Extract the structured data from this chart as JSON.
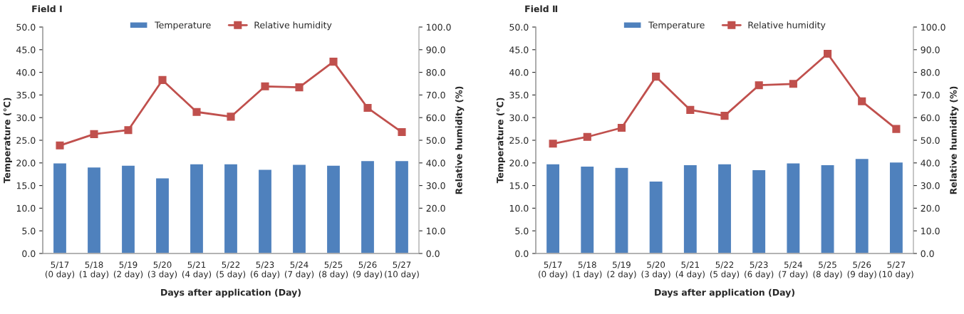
{
  "chart_data": [
    {
      "type": "bar",
      "title": "Field Ⅰ",
      "xlabel": "Days after application (Day)",
      "ylabel": "Temperature (℃)",
      "y2label": "Relative humidity (%)",
      "categories": [
        "5/17\n(0 day)",
        "5/18\n(1 day)",
        "5/19\n(2 day)",
        "5/20\n(3 day)",
        "5/21\n(4 day)",
        "5/22\n(5 day)",
        "5/23\n(6 day)",
        "5/24\n(7 day)",
        "5/25\n(8 day)",
        "5/26\n(9 day)",
        "5/27\n(10 day)"
      ],
      "series": [
        {
          "name": "Temperature",
          "color": "#4f81bd",
          "values": [
            20.0,
            19.1,
            19.5,
            16.7,
            19.8,
            19.8,
            18.6,
            19.7,
            19.5,
            20.5,
            20.5
          ]
        },
        {
          "name": "Relative humidity",
          "type": "line",
          "axis": "y2",
          "color": "#c0504d",
          "marker": "square",
          "values": [
            47.7,
            52.7,
            54.5,
            76.6,
            62.5,
            60.4,
            73.8,
            73.4,
            84.7,
            64.3,
            53.6
          ]
        }
      ],
      "ylim": [
        0,
        50
      ],
      "yticks": [
        {
          "value": 0,
          "label": "0.0"
        },
        {
          "value": 5,
          "label": "5.0"
        },
        {
          "value": 10,
          "label": "10.0"
        },
        {
          "value": 15,
          "label": "15.0"
        },
        {
          "value": 20,
          "label": "20.0"
        },
        {
          "value": 25,
          "label": "25.0"
        },
        {
          "value": 30,
          "label": "30.0"
        },
        {
          "value": 35,
          "label": "35.0"
        },
        {
          "value": 40,
          "label": "40.0"
        },
        {
          "value": 45,
          "label": "45.0"
        },
        {
          "value": 50,
          "label": "50.0"
        }
      ],
      "y2lim": [
        0,
        100
      ],
      "y2ticks": [
        {
          "value": 0,
          "label": "0.0"
        },
        {
          "value": 10,
          "label": "10.0"
        },
        {
          "value": 20,
          "label": "20.0"
        },
        {
          "value": 30,
          "label": "30.0"
        },
        {
          "value": 40,
          "label": "40.0"
        },
        {
          "value": 50,
          "label": "50.0"
        },
        {
          "value": 60,
          "label": "60.0"
        },
        {
          "value": 70,
          "label": "70.0"
        },
        {
          "value": 80,
          "label": "80.0"
        },
        {
          "value": 90,
          "label": "90.0"
        },
        {
          "value": 100,
          "label": "100.0"
        }
      ],
      "legend": "top",
      "grid": false
    },
    {
      "type": "bar",
      "title": "Field Ⅱ",
      "xlabel": "Days after application (Day)",
      "ylabel": "Temperature (℃)",
      "y2label": "Relative humidity (%)",
      "categories": [
        "5/17\n(0 day)",
        "5/18\n(1 day)",
        "5/19\n(2 day)",
        "5/20\n(3 day)",
        "5/21\n(4 day)",
        "5/22\n(5 day)",
        "5/23\n(6 day)",
        "5/24\n(7 day)",
        "5/25\n(8 day)",
        "5/26\n(9 day)",
        "5/27\n(10 day)"
      ],
      "series": [
        {
          "name": "Temperature",
          "color": "#4f81bd",
          "values": [
            19.8,
            19.3,
            19.0,
            16.0,
            19.6,
            19.8,
            18.5,
            20.0,
            19.6,
            21.0,
            20.2
          ]
        },
        {
          "name": "Relative humidity",
          "type": "line",
          "axis": "y2",
          "color": "#c0504d",
          "marker": "square",
          "values": [
            48.5,
            51.5,
            55.5,
            78.1,
            63.4,
            60.8,
            74.3,
            74.9,
            88.2,
            67.2,
            55.0
          ]
        }
      ],
      "ylim": [
        0,
        50
      ],
      "yticks": [
        {
          "value": 0,
          "label": "0.0"
        },
        {
          "value": 5,
          "label": "5.0"
        },
        {
          "value": 10,
          "label": "10.0"
        },
        {
          "value": 15,
          "label": "15.0"
        },
        {
          "value": 20,
          "label": "20.0"
        },
        {
          "value": 25,
          "label": "25.0"
        },
        {
          "value": 30,
          "label": "30.0"
        },
        {
          "value": 35,
          "label": "35.0"
        },
        {
          "value": 40,
          "label": "40.0"
        },
        {
          "value": 45,
          "label": "45.0"
        },
        {
          "value": 50,
          "label": "50.0"
        }
      ],
      "y2lim": [
        0,
        100
      ],
      "y2ticks": [
        {
          "value": 0,
          "label": "0.0"
        },
        {
          "value": 10,
          "label": "10.0"
        },
        {
          "value": 20,
          "label": "20.0"
        },
        {
          "value": 30,
          "label": "30.0"
        },
        {
          "value": 40,
          "label": "40.0"
        },
        {
          "value": 50,
          "label": "50.0"
        },
        {
          "value": 60,
          "label": "60.0"
        },
        {
          "value": 70,
          "label": "70.0"
        },
        {
          "value": 80,
          "label": "80.0"
        },
        {
          "value": 90,
          "label": "90.0"
        },
        {
          "value": 100,
          "label": "100.0"
        }
      ],
      "legend": "top",
      "grid": false
    }
  ]
}
